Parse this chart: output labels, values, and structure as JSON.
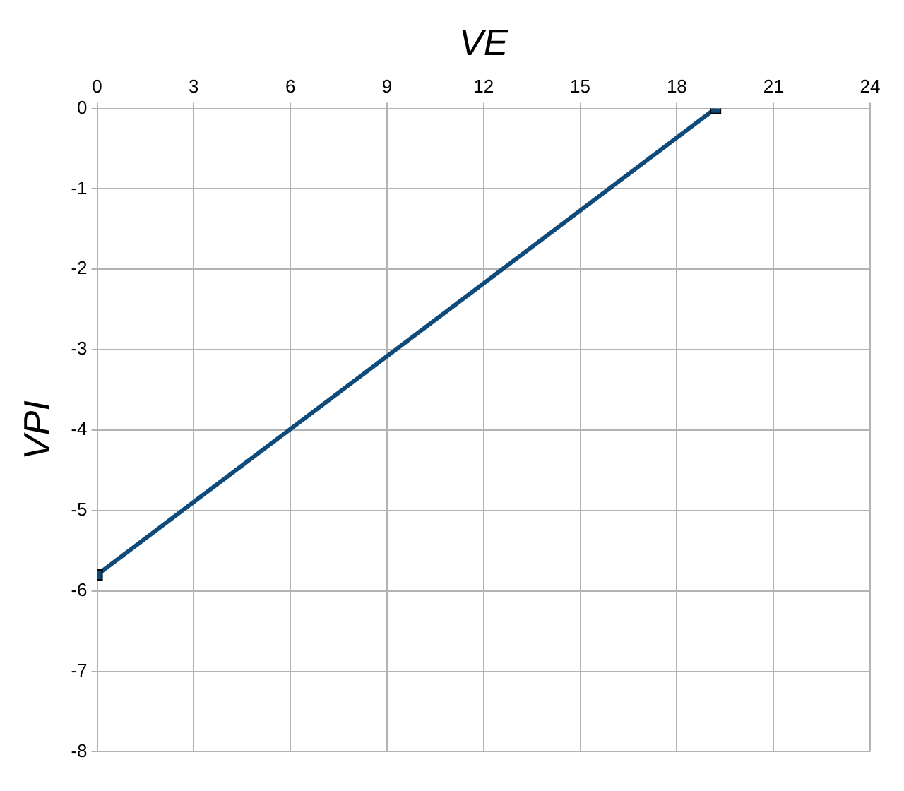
{
  "chart_data": {
    "type": "line",
    "xlabel": "VE",
    "ylabel": "VPI",
    "x": [
      0,
      19.2
    ],
    "series": [
      {
        "color": "#0e4a7a",
        "values": [
          -5.8,
          0
        ]
      }
    ],
    "xlim": [
      0,
      24
    ],
    "xticks": [
      0,
      3,
      6,
      9,
      12,
      15,
      18,
      21,
      24
    ],
    "ylim": [
      -8,
      0
    ],
    "yticks": [
      -8,
      -7,
      -6,
      -5,
      -4,
      -3,
      -2,
      -1,
      0
    ],
    "grid": true,
    "legend": false,
    "marker": "square",
    "line_style": "solid"
  }
}
